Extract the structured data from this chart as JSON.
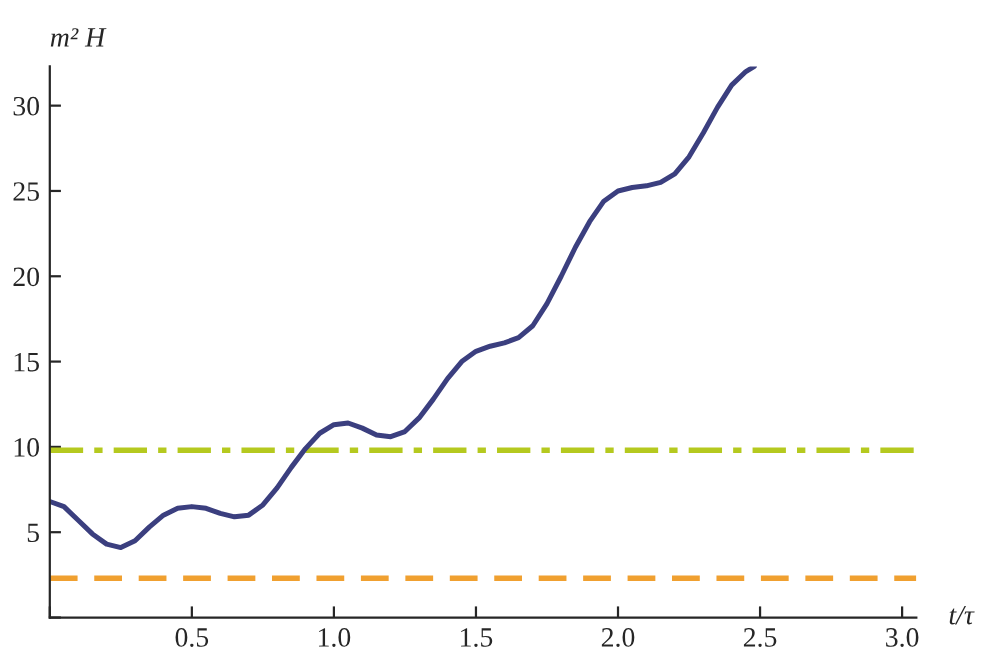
{
  "chart_data": {
    "type": "line",
    "xlabel": "t/τ",
    "ylabel": "m² H",
    "xlim": [
      0,
      3.05
    ],
    "ylim": [
      0,
      32.3
    ],
    "xticks": [
      {
        "value": 0,
        "label": null
      },
      0.5,
      {
        "value": 1,
        "label": "1.0"
      },
      1.5,
      {
        "value": 2,
        "label": "2.0"
      },
      2.5,
      {
        "value": 3,
        "label": "3.0"
      }
    ],
    "yticks": [
      {
        "value": 0,
        "label": null
      },
      5,
      10,
      15,
      20,
      25,
      30
    ],
    "grid": false,
    "marker": "none",
    "line_style": "solid",
    "series": [
      {
        "color": "#3b3f7f",
        "x": [
          0,
          0.05,
          0.1,
          0.15,
          0.2,
          0.25,
          0.3,
          0.35,
          0.4,
          0.45,
          0.5,
          0.55,
          0.6,
          0.65,
          0.7,
          0.75,
          0.8,
          0.85,
          0.9,
          0.95,
          1.0,
          1.05,
          1.1,
          1.15,
          1.2,
          1.25,
          1.3,
          1.35,
          1.4,
          1.45,
          1.5,
          1.55,
          1.6,
          1.65,
          1.7,
          1.75,
          1.8,
          1.85,
          1.9,
          1.95,
          2.0,
          2.05,
          2.1,
          2.15,
          2.2,
          2.25,
          2.3,
          2.35,
          2.4,
          2.45,
          2.48
        ],
        "values": [
          6.8,
          6.5,
          5.7,
          4.9,
          4.3,
          4.1,
          4.5,
          5.3,
          6.0,
          6.4,
          6.5,
          6.4,
          6.1,
          5.9,
          6.0,
          6.6,
          7.6,
          8.8,
          9.9,
          10.8,
          11.3,
          11.4,
          11.1,
          10.7,
          10.6,
          10.9,
          11.7,
          12.8,
          14.0,
          15.0,
          15.6,
          15.9,
          16.1,
          16.4,
          17.1,
          18.4,
          20.0,
          21.7,
          23.2,
          24.4,
          25.0,
          25.2,
          25.3,
          25.5,
          26.0,
          27.0,
          28.4,
          29.9,
          31.2,
          32.0,
          32.3
        ]
      }
    ],
    "ref_lines": [
      {
        "axis": "y",
        "value": 9.8,
        "color": "#b5c91f",
        "line_style": "dashdot"
      },
      {
        "axis": "y",
        "value": 2.3,
        "color": "#f0a030",
        "line_style": "dashed"
      }
    ]
  }
}
